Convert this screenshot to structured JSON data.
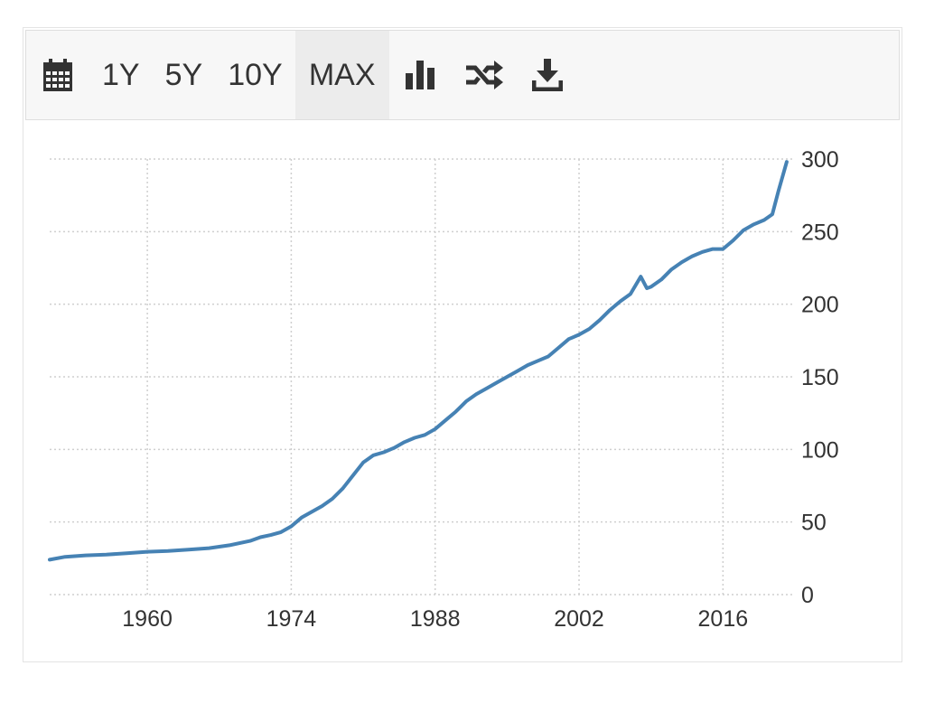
{
  "toolbar": {
    "icons": {
      "calendar": "calendar-icon",
      "chart_type": "bar-chart-icon",
      "compare": "shuffle-icon",
      "download": "download-icon"
    },
    "ranges": [
      "1Y",
      "5Y",
      "10Y",
      "MAX"
    ],
    "active_range": "MAX"
  },
  "colors": {
    "line": "#4682b4",
    "grid": "#cfcfcf",
    "toolbar_bg": "#f7f7f7",
    "active_bg": "#ececec"
  },
  "chart_data": {
    "type": "line",
    "title": "",
    "xlabel": "",
    "ylabel": "",
    "xlim": [
      1950.5,
      2023
    ],
    "ylim": [
      0,
      300
    ],
    "x_ticks": [
      1960,
      1974,
      1988,
      2002,
      2016
    ],
    "y_ticks": [
      0,
      50,
      100,
      150,
      200,
      250,
      300
    ],
    "y_axis_side": "right",
    "grid": true,
    "series": [
      {
        "values": [
          [
            1950.5,
            24
          ],
          [
            1952,
            26
          ],
          [
            1954,
            27
          ],
          [
            1956,
            27.5
          ],
          [
            1958,
            28.5
          ],
          [
            1960,
            29.5
          ],
          [
            1962,
            30
          ],
          [
            1964,
            31
          ],
          [
            1966,
            32
          ],
          [
            1968,
            34
          ],
          [
            1970,
            37
          ],
          [
            1971,
            39.5
          ],
          [
            1972,
            41
          ],
          [
            1973,
            43
          ],
          [
            1974,
            47
          ],
          [
            1975,
            53
          ],
          [
            1976,
            57
          ],
          [
            1977,
            61
          ],
          [
            1978,
            66
          ],
          [
            1979,
            73
          ],
          [
            1980,
            82
          ],
          [
            1981,
            91
          ],
          [
            1982,
            96
          ],
          [
            1983,
            98
          ],
          [
            1984,
            101
          ],
          [
            1985,
            105
          ],
          [
            1986,
            108
          ],
          [
            1987,
            110
          ],
          [
            1988,
            114
          ],
          [
            1989,
            120
          ],
          [
            1990,
            126
          ],
          [
            1991,
            133
          ],
          [
            1992,
            138
          ],
          [
            1993,
            142
          ],
          [
            1994,
            146
          ],
          [
            1995,
            150
          ],
          [
            1996,
            154
          ],
          [
            1997,
            158
          ],
          [
            1998,
            161
          ],
          [
            1999,
            164
          ],
          [
            2000,
            170
          ],
          [
            2001,
            176
          ],
          [
            2002,
            179
          ],
          [
            2003,
            183
          ],
          [
            2004,
            189
          ],
          [
            2005,
            196
          ],
          [
            2006,
            202
          ],
          [
            2007,
            207
          ],
          [
            2008,
            219
          ],
          [
            2008.6,
            211
          ],
          [
            2009,
            212
          ],
          [
            2010,
            217
          ],
          [
            2011,
            224
          ],
          [
            2012,
            229
          ],
          [
            2013,
            233
          ],
          [
            2014,
            236
          ],
          [
            2015,
            238
          ],
          [
            2016,
            238
          ],
          [
            2017,
            244
          ],
          [
            2018,
            251
          ],
          [
            2019,
            255
          ],
          [
            2020,
            258
          ],
          [
            2020.8,
            262
          ],
          [
            2021.4,
            278
          ],
          [
            2022.2,
            298
          ]
        ]
      }
    ]
  }
}
